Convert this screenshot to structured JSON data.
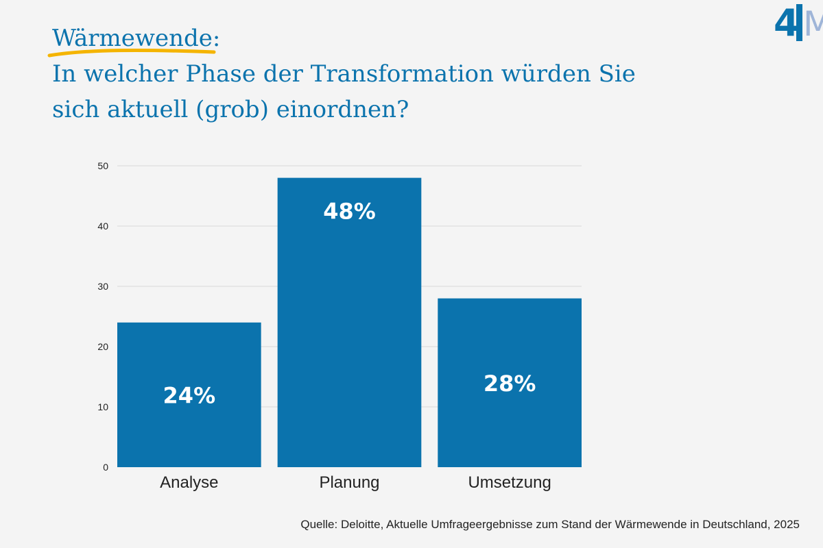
{
  "title": {
    "kicker": "Wärmewende",
    "kicker_colon": ":",
    "line1": "In welcher Phase der Transformation würden Sie",
    "line2": "sich aktuell (grob) einordnen?"
  },
  "logo": {
    "left_text": "4",
    "right_text": "M"
  },
  "colors": {
    "primary": "#0b73ad",
    "accent": "#f4b400",
    "grid": "#d9d9d9",
    "background": "#f4f4f4",
    "logo_light": "#9fb5d8"
  },
  "chart_data": {
    "type": "bar",
    "categories": [
      "Analyse",
      "Planung",
      "Umsetzung"
    ],
    "values": [
      24,
      48,
      28
    ],
    "data_labels": [
      "24%",
      "48%",
      "28%"
    ],
    "yticks": [
      0,
      10,
      20,
      30,
      40,
      50
    ],
    "ylim": [
      0,
      50
    ],
    "xlabel": "",
    "ylabel": "",
    "grid": true,
    "legend": "none"
  },
  "source": "Quelle: Deloitte, Aktuelle Umfrageergebnisse zum Stand der Wärmewende in Deutschland, 2025"
}
